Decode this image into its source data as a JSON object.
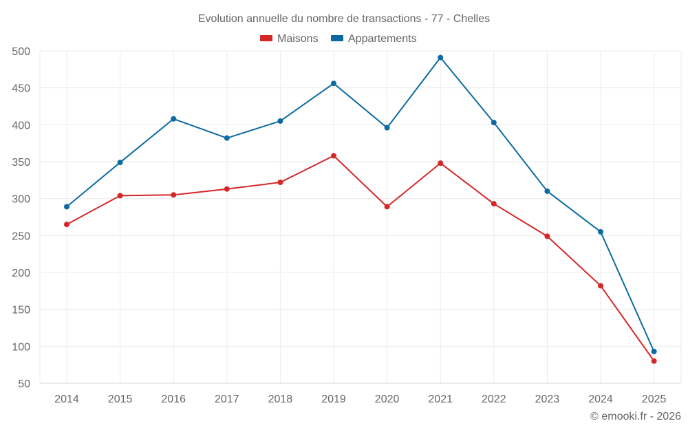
{
  "chart_data": {
    "type": "line",
    "title": "Evolution annuelle du nombre de transactions - 77 - Chelles",
    "xlabel": "",
    "ylabel": "",
    "x": [
      "2014",
      "2015",
      "2016",
      "2017",
      "2018",
      "2019",
      "2020",
      "2021",
      "2022",
      "2023",
      "2024",
      "2025"
    ],
    "ylim": [
      50,
      500
    ],
    "yticks": [
      50,
      100,
      150,
      200,
      250,
      300,
      350,
      400,
      450,
      500
    ],
    "grid": true,
    "legend_position": "top-center",
    "series": [
      {
        "name": "Maisons",
        "color": "#d62728",
        "values": [
          265,
          304,
          305,
          313,
          322,
          358,
          289,
          348,
          293,
          249,
          182,
          80
        ]
      },
      {
        "name": "Appartements",
        "color": "#0b6aa2",
        "values": [
          289,
          349,
          408,
          382,
          405,
          456,
          396,
          491,
          403,
          310,
          255,
          93
        ]
      }
    ]
  },
  "credit": "© emooki.fr - 2026"
}
